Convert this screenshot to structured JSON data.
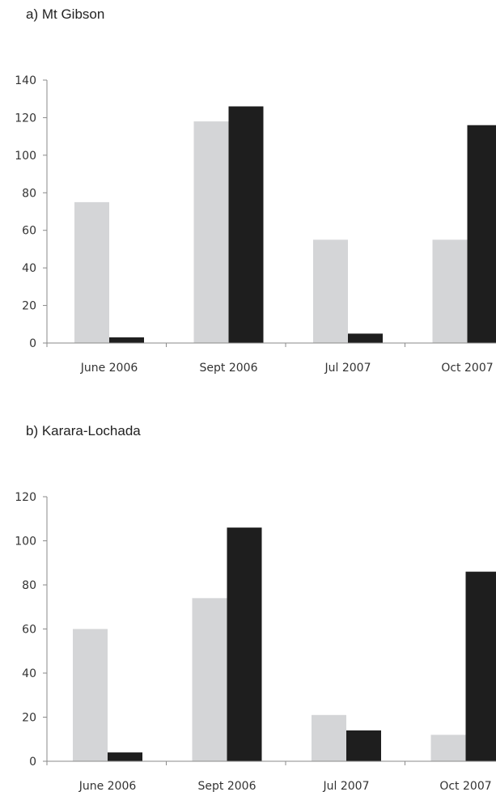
{
  "chart_data": [
    {
      "type": "bar",
      "title": "a)  Mt Gibson",
      "categories": [
        "June 2006",
        "Sept 2006",
        "Jul 2007",
        "Oct 2007"
      ],
      "series": [
        {
          "values": [
            75,
            118,
            55,
            55
          ],
          "color": "#d4d5d7"
        },
        {
          "values": [
            3,
            126,
            5,
            116
          ],
          "color": "#1e1e1e"
        }
      ],
      "ylim": [
        0,
        140
      ],
      "yticks": [
        0,
        20,
        40,
        60,
        80,
        100,
        120,
        140
      ],
      "grid": false,
      "legend": "none"
    },
    {
      "type": "bar",
      "title": "b)  Karara-Lochada",
      "categories": [
        "June 2006",
        "Sept 2006",
        "Jul 2007",
        "Oct 2007"
      ],
      "series": [
        {
          "values": [
            60,
            74,
            21,
            12
          ],
          "color": "#d4d5d7"
        },
        {
          "values": [
            4,
            106,
            14,
            86
          ],
          "color": "#1e1e1e"
        }
      ],
      "ylim": [
        0,
        120
      ],
      "yticks": [
        0,
        20,
        40,
        60,
        80,
        100,
        120
      ],
      "grid": false,
      "legend": "none"
    }
  ]
}
